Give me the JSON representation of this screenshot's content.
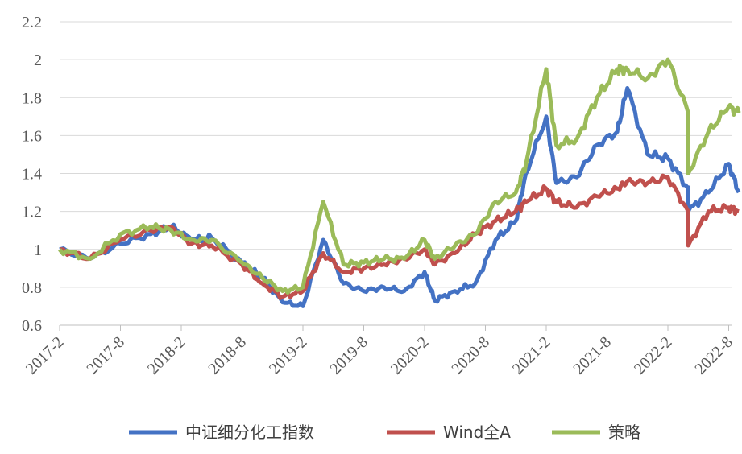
{
  "chart_data": {
    "type": "line",
    "title": "",
    "xlabel": "",
    "ylabel": "",
    "ylim": [
      0.6,
      2.2
    ],
    "yticks": [
      "0.6",
      "0.8",
      "1",
      "1.2",
      "1.4",
      "1.6",
      "1.8",
      "2",
      "2.2"
    ],
    "xticks": [
      "2017-2",
      "2017-8",
      "2018-2",
      "2018-8",
      "2019-2",
      "2019-8",
      "2020-2",
      "2020-8",
      "2021-2",
      "2021-8",
      "2022-2",
      "2022-8"
    ],
    "grid": true,
    "legend_position": "bottom",
    "x": [
      "2017-02",
      "2017-05",
      "2017-08",
      "2017-11",
      "2018-01",
      "2018-03",
      "2018-05",
      "2018-08",
      "2018-10",
      "2018-12",
      "2019-02",
      "2019-04",
      "2019-06",
      "2019-08",
      "2019-10",
      "2019-12",
      "2020-02",
      "2020-03",
      "2020-05",
      "2020-07",
      "2020-09",
      "2020-11",
      "2020-12",
      "2021-02",
      "2021-03",
      "2021-05",
      "2021-07",
      "2021-09",
      "2021-10",
      "2021-12",
      "2022-02",
      "2022-04",
      "2022-04",
      "2022-06",
      "2022-08",
      "2022-09"
    ],
    "series": [
      {
        "name": "中证细分化工指数",
        "color": "#4472C4",
        "values": [
          1.0,
          0.95,
          1.03,
          1.08,
          1.12,
          1.05,
          1.06,
          0.93,
          0.85,
          0.72,
          0.7,
          1.05,
          0.82,
          0.78,
          0.8,
          0.78,
          0.88,
          0.73,
          0.78,
          0.82,
          1.05,
          1.15,
          1.4,
          1.7,
          1.35,
          1.38,
          1.55,
          1.62,
          1.85,
          1.5,
          1.48,
          1.32,
          1.2,
          1.3,
          1.45,
          1.3
        ]
      },
      {
        "name": "Wind全A",
        "color": "#C0504D",
        "values": [
          1.0,
          0.95,
          1.05,
          1.1,
          1.12,
          1.03,
          1.02,
          0.92,
          0.82,
          0.75,
          0.78,
          0.98,
          0.88,
          0.9,
          0.92,
          0.95,
          1.0,
          0.92,
          0.98,
          1.08,
          1.15,
          1.2,
          1.25,
          1.32,
          1.25,
          1.22,
          1.28,
          1.32,
          1.36,
          1.35,
          1.38,
          1.2,
          1.02,
          1.2,
          1.22,
          1.2
        ]
      },
      {
        "name": "策略",
        "color": "#9BBB59",
        "values": [
          1.0,
          0.95,
          1.08,
          1.12,
          1.1,
          1.05,
          1.05,
          0.93,
          0.85,
          0.78,
          0.8,
          1.25,
          0.92,
          0.93,
          0.95,
          0.95,
          1.05,
          0.95,
          1.02,
          1.08,
          1.25,
          1.3,
          1.45,
          1.95,
          1.55,
          1.58,
          1.8,
          1.95,
          1.95,
          1.9,
          2.0,
          1.72,
          1.4,
          1.62,
          1.75,
          1.72
        ]
      }
    ]
  }
}
